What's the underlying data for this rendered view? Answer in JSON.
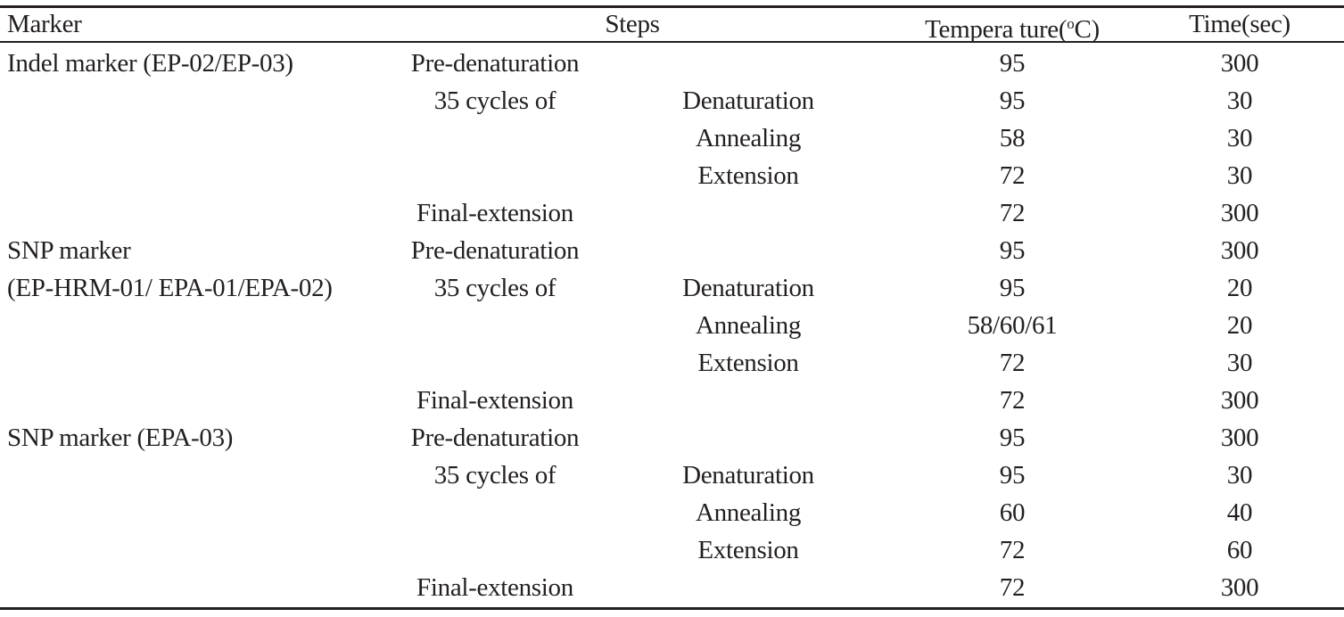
{
  "header": {
    "marker": "Marker",
    "steps": "Steps",
    "temp_prefix": "Tempera ture(",
    "temp_deg": "o",
    "temp_suffix": "C)",
    "time": "Time(sec)"
  },
  "rows": [
    {
      "marker": "Indel marker (EP-02/EP-03)",
      "step": "Pre-denaturation",
      "substep": "",
      "temp": "95",
      "time": "300"
    },
    {
      "marker": "",
      "step": "35 cycles of",
      "substep": "Denaturation",
      "temp": "95",
      "time": "30"
    },
    {
      "marker": "",
      "step": "",
      "substep": "Annealing",
      "temp": "58",
      "time": "30"
    },
    {
      "marker": "",
      "step": "",
      "substep": "Extension",
      "temp": "72",
      "time": "30"
    },
    {
      "marker": "",
      "step": "Final-extension",
      "substep": "",
      "temp": "72",
      "time": "300"
    },
    {
      "marker": "SNP marker",
      "step": "Pre-denaturation",
      "substep": "",
      "temp": "95",
      "time": "300"
    },
    {
      "marker": "(EP-HRM-01/ EPA-01/EPA-02)",
      "step": "35 cycles of",
      "substep": "Denaturation",
      "temp": "95",
      "time": "20"
    },
    {
      "marker": "",
      "step": "",
      "substep": "Annealing",
      "temp": "58/60/61",
      "time": "20"
    },
    {
      "marker": "",
      "step": "",
      "substep": "Extension",
      "temp": "72",
      "time": "30"
    },
    {
      "marker": "",
      "step": "Final-extension",
      "substep": "",
      "temp": "72",
      "time": "300"
    },
    {
      "marker": "SNP marker (EPA-03)",
      "step": "Pre-denaturation",
      "substep": "",
      "temp": "95",
      "time": "300"
    },
    {
      "marker": "",
      "step": "35 cycles of",
      "substep": "Denaturation",
      "temp": "95",
      "time": "30"
    },
    {
      "marker": "",
      "step": "",
      "substep": "Annealing",
      "temp": "60",
      "time": "40"
    },
    {
      "marker": "",
      "step": "",
      "substep": "Extension",
      "temp": "72",
      "time": "60"
    },
    {
      "marker": "",
      "step": "Final-extension",
      "substep": "",
      "temp": "72",
      "time": "300"
    }
  ]
}
